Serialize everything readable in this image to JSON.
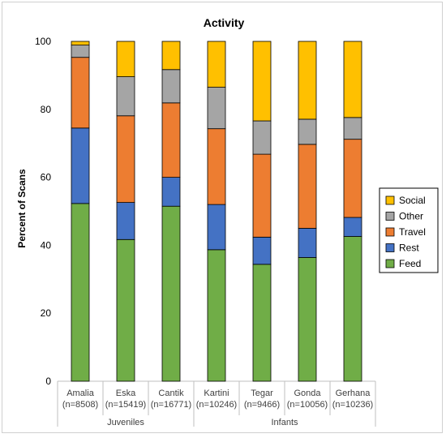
{
  "chart_data": {
    "type": "bar",
    "stacked": true,
    "title": "Activity",
    "ylabel": "Percent of Scans",
    "xlabel": "",
    "ylim": [
      0,
      100
    ],
    "yticks": [
      0,
      20,
      40,
      60,
      80,
      100
    ],
    "grid": false,
    "legend_position": "right",
    "categories": [
      [
        "Amalia",
        "(n=8508)"
      ],
      [
        "Eska",
        "(n=15419)"
      ],
      [
        "Cantik",
        "(n=16771)"
      ],
      [
        "Kartini",
        "(n=10246)"
      ],
      [
        "Tegar",
        "(n=9466)"
      ],
      [
        "Gonda",
        "(n=10056)"
      ],
      [
        "Gerhana",
        "(n=10236)"
      ]
    ],
    "groups": [
      {
        "label": "Juveniles",
        "start": 0,
        "end": 2
      },
      {
        "label": "Infants",
        "start": 3,
        "end": 6
      }
    ],
    "series": [
      {
        "name": "Feed",
        "color": "#70ad47",
        "values": [
          52.3,
          41.7,
          51.5,
          38.7,
          34.4,
          36.4,
          42.6
        ]
      },
      {
        "name": "Rest",
        "color": "#4472c4",
        "values": [
          22.2,
          10.9,
          8.5,
          13.3,
          8.0,
          8.6,
          5.6
        ]
      },
      {
        "name": "Travel",
        "color": "#ed7d31",
        "values": [
          20.8,
          25.5,
          21.9,
          22.3,
          24.4,
          24.7,
          23.0
        ]
      },
      {
        "name": "Other",
        "color": "#a5a5a5",
        "values": [
          3.6,
          11.5,
          9.8,
          12.2,
          9.8,
          7.4,
          6.4
        ]
      },
      {
        "name": "Social",
        "color": "#ffc000",
        "values": [
          1.1,
          10.4,
          8.3,
          13.5,
          23.4,
          22.9,
          22.4
        ]
      }
    ],
    "legend_order": [
      "Social",
      "Other",
      "Travel",
      "Rest",
      "Feed"
    ]
  }
}
